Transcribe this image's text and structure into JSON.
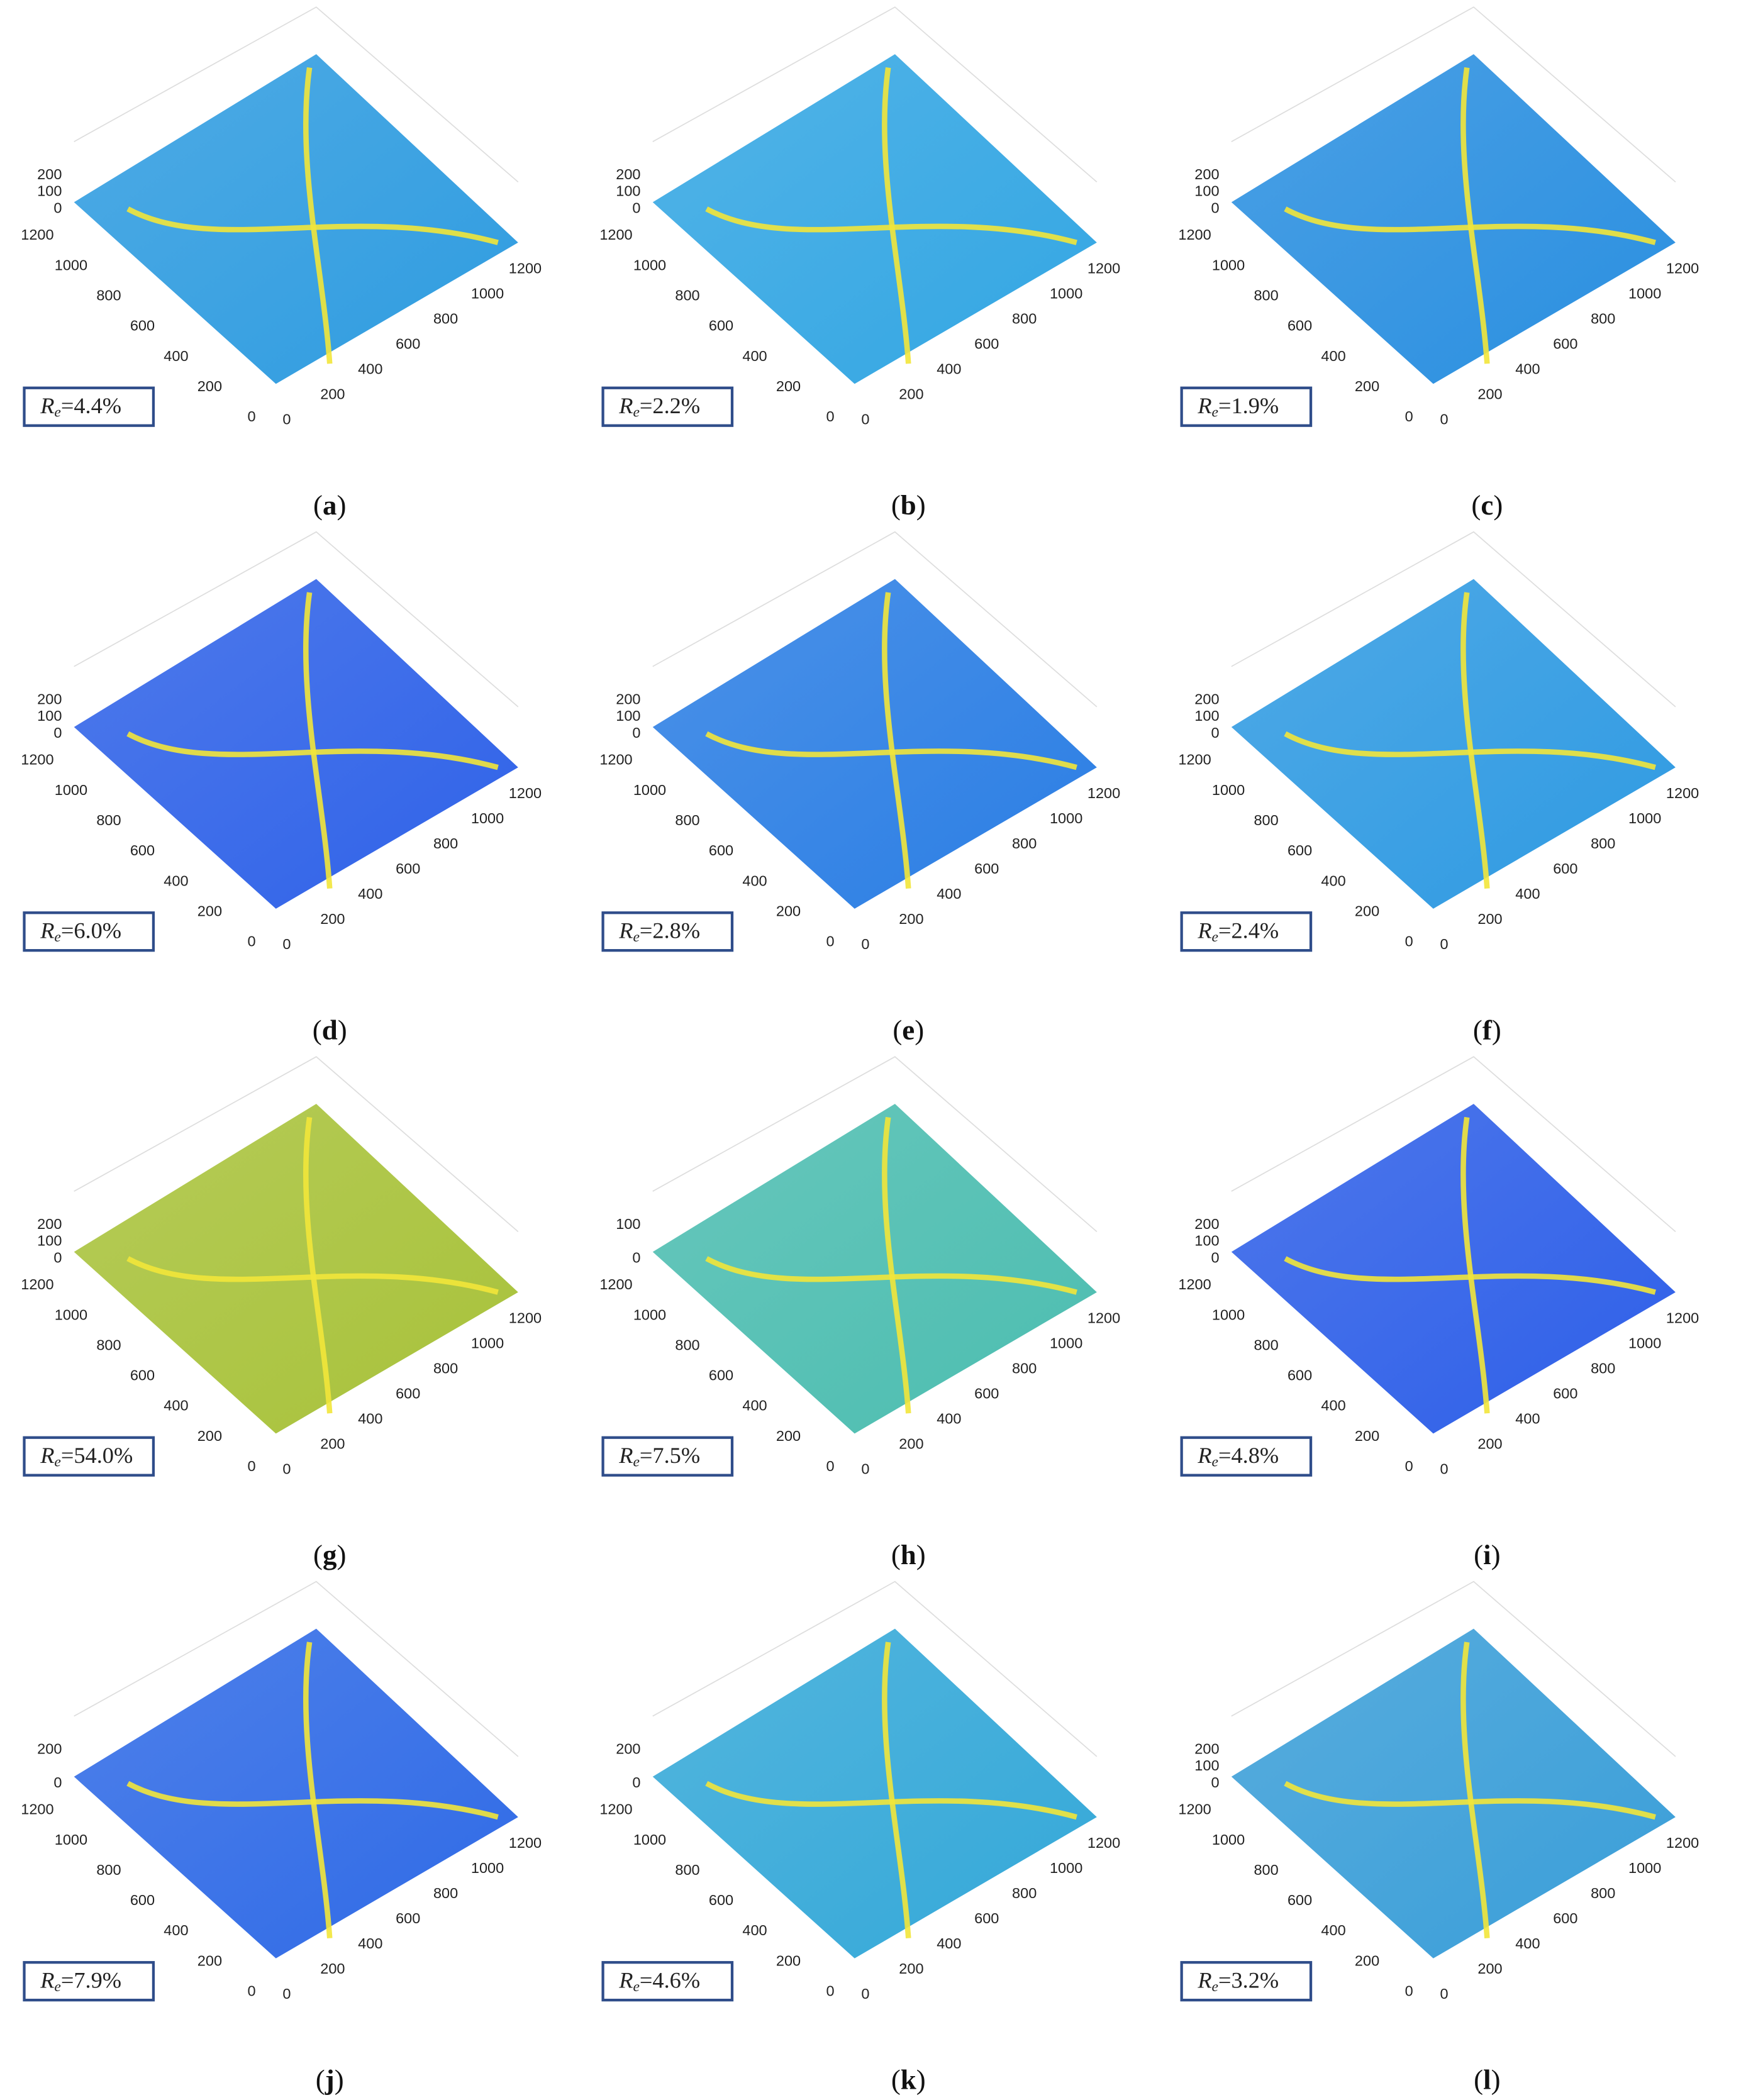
{
  "paren_open": "(",
  "paren_close": ")",
  "x_ticks": [
    0,
    200,
    400,
    600,
    800,
    1000,
    1200
  ],
  "y_ticks": [
    0,
    200,
    400,
    600,
    800,
    1000,
    1200
  ],
  "panels": [
    {
      "letter": "a",
      "re_symbol": "R",
      "re_subscript": "e",
      "re_value": "=4.4%",
      "z_ticks": [
        200,
        100,
        0
      ],
      "color": "#2f9ce0"
    },
    {
      "letter": "b",
      "re_symbol": "R",
      "re_subscript": "e",
      "re_value": "=2.2%",
      "z_ticks": [
        200,
        100,
        0
      ],
      "color": "#33a6e3"
    },
    {
      "letter": "c",
      "re_symbol": "R",
      "re_subscript": "e",
      "re_value": "=1.9%",
      "z_ticks": [
        200,
        100,
        0
      ],
      "color": "#2a8fe0"
    },
    {
      "letter": "d",
      "re_symbol": "R",
      "re_subscript": "e",
      "re_value": "=6.0%",
      "z_ticks": [
        200,
        100,
        0
      ],
      "color": "#2f62e8"
    },
    {
      "letter": "e",
      "re_symbol": "R",
      "re_subscript": "e",
      "re_value": "=2.8%",
      "z_ticks": [
        200,
        100,
        0
      ],
      "color": "#2b7ee4"
    },
    {
      "letter": "f",
      "re_symbol": "R",
      "re_subscript": "e",
      "re_value": "=2.4%",
      "z_ticks": [
        200,
        100,
        0
      ],
      "color": "#2f9ae2"
    },
    {
      "letter": "g",
      "re_symbol": "R",
      "re_subscript": "e",
      "re_value": "=54.0%",
      "z_ticks": [
        200,
        100,
        0
      ],
      "color": "#a8c23a"
    },
    {
      "letter": "h",
      "re_symbol": "R",
      "re_subscript": "e",
      "re_value": "=7.5%",
      "z_ticks": [
        100,
        0
      ],
      "color": "#4cbdb0"
    },
    {
      "letter": "i",
      "re_symbol": "R",
      "re_subscript": "e",
      "re_value": "=4.8%",
      "z_ticks": [
        200,
        100,
        0
      ],
      "color": "#2e5fe8"
    },
    {
      "letter": "j",
      "re_symbol": "R",
      "re_subscript": "e",
      "re_value": "=7.9%",
      "z_ticks": [
        200,
        0
      ],
      "color": "#2f6ae6"
    },
    {
      "letter": "k",
      "re_symbol": "R",
      "re_subscript": "e",
      "re_value": "=4.6%",
      "z_ticks": [
        200,
        0
      ],
      "color": "#34a8d8"
    },
    {
      "letter": "l",
      "re_symbol": "R",
      "re_subscript": "e",
      "re_value": "=3.2%",
      "z_ticks": [
        200,
        100,
        0
      ],
      "color": "#3a9ed8"
    }
  ]
}
